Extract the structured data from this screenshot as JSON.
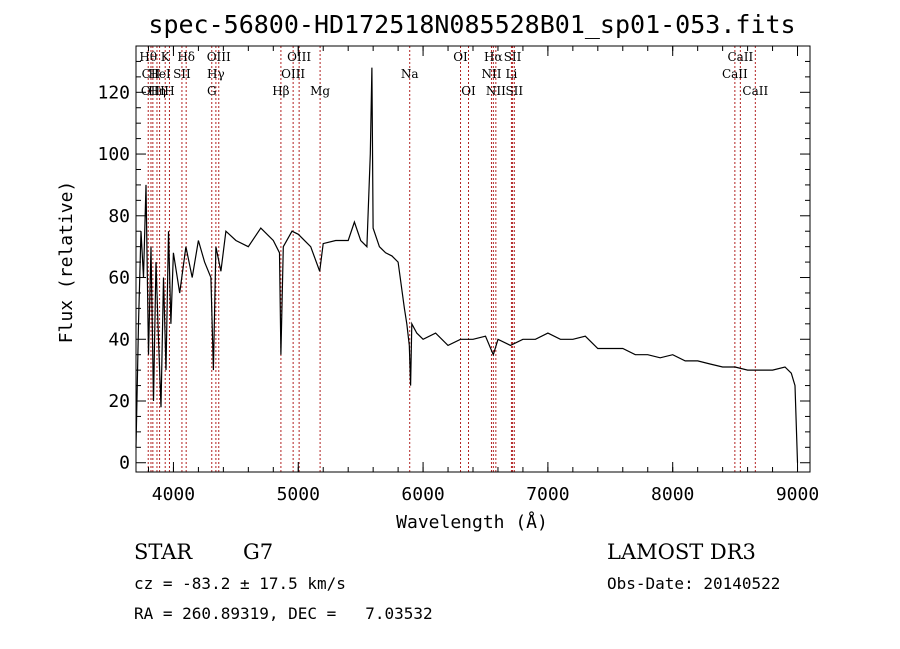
{
  "chart_data": {
    "type": "line",
    "title": "spec-56800-HD172518N085528B01_sp01-053.fits",
    "xlabel": "Wavelength (Å)",
    "ylabel": "Flux (relative)",
    "xlim": [
      3700,
      9100
    ],
    "ylim": [
      -3,
      135
    ],
    "xticks": [
      4000,
      5000,
      6000,
      7000,
      8000,
      9000
    ],
    "yticks": [
      0,
      20,
      40,
      60,
      80,
      100,
      120
    ],
    "series": [
      {
        "name": "flux",
        "x": [
          3700,
          3720,
          3740,
          3760,
          3780,
          3800,
          3820,
          3840,
          3860,
          3880,
          3900,
          3920,
          3940,
          3960,
          3980,
          4000,
          4050,
          4100,
          4150,
          4200,
          4250,
          4300,
          4320,
          4340,
          4380,
          4420,
          4500,
          4600,
          4700,
          4800,
          4850,
          4861,
          4880,
          4950,
          5000,
          5100,
          5172,
          5200,
          5300,
          5400,
          5450,
          5500,
          5550,
          5577,
          5590,
          5600,
          5650,
          5700,
          5750,
          5800,
          5850,
          5870,
          5890,
          5900,
          5910,
          5950,
          6000,
          6100,
          6200,
          6300,
          6400,
          6500,
          6563,
          6600,
          6700,
          6800,
          6900,
          7000,
          7100,
          7200,
          7300,
          7400,
          7500,
          7600,
          7700,
          7800,
          7900,
          8000,
          8100,
          8200,
          8300,
          8400,
          8500,
          8600,
          8700,
          8800,
          8900,
          8950,
          8980,
          9000
        ],
        "y": [
          5,
          45,
          75,
          60,
          90,
          35,
          70,
          20,
          65,
          40,
          18,
          60,
          30,
          75,
          45,
          68,
          55,
          70,
          60,
          72,
          65,
          60,
          30,
          70,
          62,
          75,
          72,
          70,
          76,
          72,
          68,
          35,
          70,
          75,
          74,
          70,
          62,
          71,
          72,
          72,
          78,
          72,
          70,
          100,
          128,
          76,
          70,
          68,
          67,
          65,
          50,
          45,
          38,
          25,
          45,
          42,
          40,
          42,
          38,
          40,
          40,
          41,
          35,
          40,
          38,
          40,
          40,
          42,
          40,
          40,
          41,
          37,
          37,
          37,
          35,
          35,
          34,
          35,
          33,
          33,
          32,
          31,
          31,
          30,
          30,
          30,
          31,
          29,
          25,
          0
        ]
      }
    ],
    "lines": [
      {
        "label": "Hθ",
        "wl": 3798,
        "row": 1
      },
      {
        "label": "CII",
        "wl": 3820,
        "row": 2
      },
      {
        "label": "OIII",
        "wl": 3835,
        "row": 3
      },
      {
        "label": "K",
        "wl": 3934,
        "row": 1
      },
      {
        "label": "HeI",
        "wl": 3889,
        "row": 2
      },
      {
        "label": "Hη",
        "wl": 3868,
        "row": 3
      },
      {
        "label": "H",
        "wl": 3968,
        "row": 3
      },
      {
        "label": "SII",
        "wl": 4068,
        "row": 2
      },
      {
        "label": "Hδ",
        "wl": 4102,
        "row": 1
      },
      {
        "label": "OIII",
        "wl": 4363,
        "row": 1
      },
      {
        "label": "Hγ",
        "wl": 4340,
        "row": 2
      },
      {
        "label": "G",
        "wl": 4307,
        "row": 3
      },
      {
        "label": "Hβ",
        "wl": 4861,
        "row": 3
      },
      {
        "label": "OIII",
        "wl": 5007,
        "row": 1
      },
      {
        "label": "OIII",
        "wl": 4959,
        "row": 2
      },
      {
        "label": "Mg",
        "wl": 5175,
        "row": 3
      },
      {
        "label": "Na",
        "wl": 5893,
        "row": 2
      },
      {
        "label": "OI",
        "wl": 6300,
        "row": 1
      },
      {
        "label": "OI",
        "wl": 6364,
        "row": 3
      },
      {
        "label": "Hα",
        "wl": 6563,
        "row": 1
      },
      {
        "label": "NII",
        "wl": 6548,
        "row": 2
      },
      {
        "label": "NII",
        "wl": 6583,
        "row": 3
      },
      {
        "label": "SII",
        "wl": 6717,
        "row": 1
      },
      {
        "label": "Li",
        "wl": 6708,
        "row": 2
      },
      {
        "label": "SII",
        "wl": 6731,
        "row": 3
      },
      {
        "label": "CaII",
        "wl": 8542,
        "row": 1
      },
      {
        "label": "CaII",
        "wl": 8498,
        "row": 2
      },
      {
        "label": "CaII",
        "wl": 8662,
        "row": 3
      }
    ],
    "line_color": "#b22222"
  },
  "info": {
    "object_class": "STAR",
    "subclass": "G7",
    "survey": "LAMOST DR3",
    "cz": "cz = -83.2 ± 17.5 km/s",
    "obs_date": "Obs-Date: 20140522",
    "coords": "RA = 260.89319, DEC =   7.03532"
  }
}
